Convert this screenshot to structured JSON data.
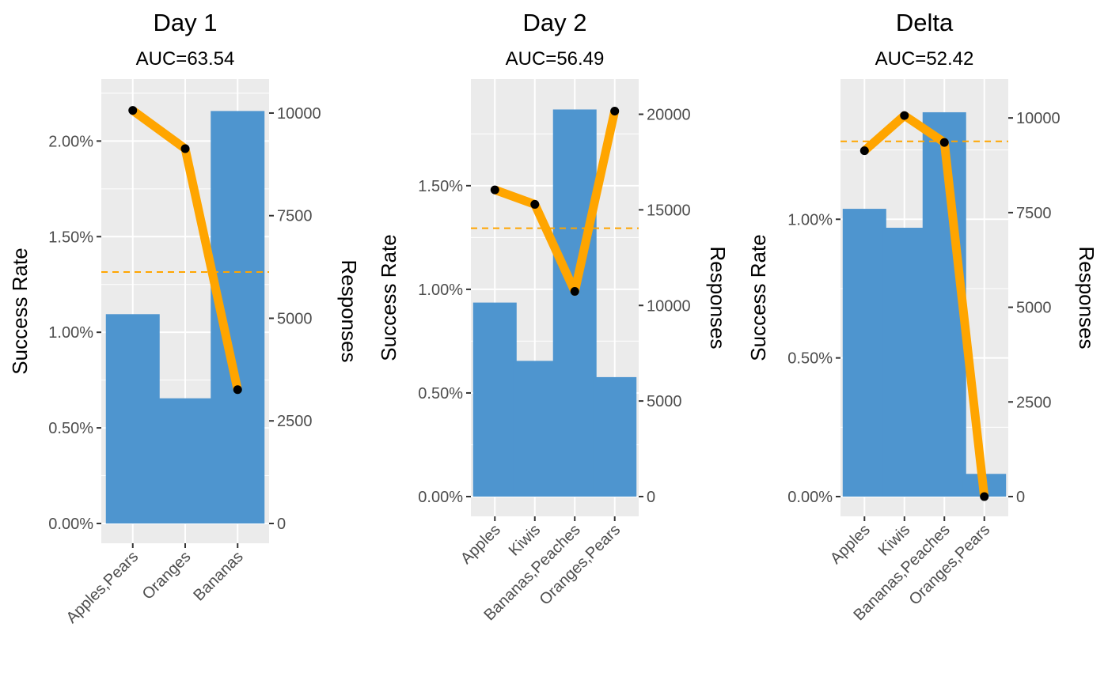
{
  "chart_data": [
    {
      "type": "bar",
      "title": "Day 1",
      "subtitle": "AUC=63.54",
      "ylabel": "Success Rate",
      "y2label": "Responses",
      "categories": [
        "Apples,Pears",
        "Oranges",
        "Bananas"
      ],
      "bars": {
        "name": "Responses",
        "values": [
          5100,
          3050,
          10050
        ]
      },
      "line": {
        "name": "Success Rate",
        "values": [
          2.16,
          1.96,
          0.7
        ]
      },
      "reference_line": {
        "value": 1.315,
        "style": "dashed"
      },
      "ylim": [
        0,
        2.2
      ],
      "y2lim": [
        0,
        10250
      ],
      "yticks": [
        0,
        0.5,
        1.0,
        1.5,
        2.0
      ],
      "yticklabels": [
        "0.00%",
        "0.50%",
        "1.00%",
        "1.50%",
        "2.00%"
      ],
      "y2ticks": [
        0,
        2500,
        5000,
        7500,
        10000
      ],
      "y2ticklabels": [
        "0",
        "2500",
        "5000",
        "7500",
        "10000"
      ],
      "grid": true
    },
    {
      "type": "bar",
      "title": "Day 2",
      "subtitle": "AUC=56.49",
      "ylabel": "Success Rate",
      "y2label": "Responses",
      "categories": [
        "Apples",
        "Kiwis",
        "Bananas,Peaches",
        "Oranges,Pears"
      ],
      "bars": {
        "name": "Responses",
        "values": [
          10150,
          7100,
          20250,
          6250
        ]
      },
      "line": {
        "name": "Success Rate",
        "values": [
          1.48,
          1.41,
          0.99,
          1.86
        ]
      },
      "reference_line": {
        "value": 1.295,
        "style": "dashed"
      },
      "ylim": [
        0,
        1.9
      ],
      "y2lim": [
        0,
        20600
      ],
      "yticks": [
        0,
        0.5,
        1.0,
        1.5
      ],
      "yticklabels": [
        "0.00%",
        "0.50%",
        "1.00%",
        "1.50%"
      ],
      "y2ticks": [
        0,
        5000,
        10000,
        15000,
        20000
      ],
      "y2ticklabels": [
        "0",
        "5000",
        "10000",
        "15000",
        "20000"
      ],
      "grid": true
    },
    {
      "type": "bar",
      "title": "Delta",
      "subtitle": "AUC=52.42",
      "ylabel": "Success Rate",
      "y2label": "Responses",
      "categories": [
        "Apples",
        "Kiwis",
        "Bananas,Peaches",
        "Oranges,Pears"
      ],
      "bars": {
        "name": "Responses",
        "values": [
          7600,
          7100,
          10150,
          600
        ]
      },
      "line": {
        "name": "Success Rate",
        "values": [
          1.247,
          1.374,
          1.277,
          0.0
        ]
      },
      "reference_line": {
        "value": 1.281,
        "style": "dashed"
      },
      "ylim": [
        0,
        1.42
      ],
      "y2lim": [
        0,
        10400
      ],
      "yticks": [
        0,
        0.5,
        1.0
      ],
      "yticklabels": [
        "0.00%",
        "0.50%",
        "1.00%"
      ],
      "y2ticks": [
        0,
        2500,
        5000,
        7500,
        10000
      ],
      "y2ticklabels": [
        "0",
        "2500",
        "5000",
        "7500",
        "10000"
      ],
      "grid": true
    }
  ],
  "colors": {
    "bar": "#4e95cf",
    "line": "#ffa500",
    "point": "#000000",
    "reference_line": "#ffa500",
    "panel_background": "#ebebeb",
    "grid": "#ffffff"
  }
}
